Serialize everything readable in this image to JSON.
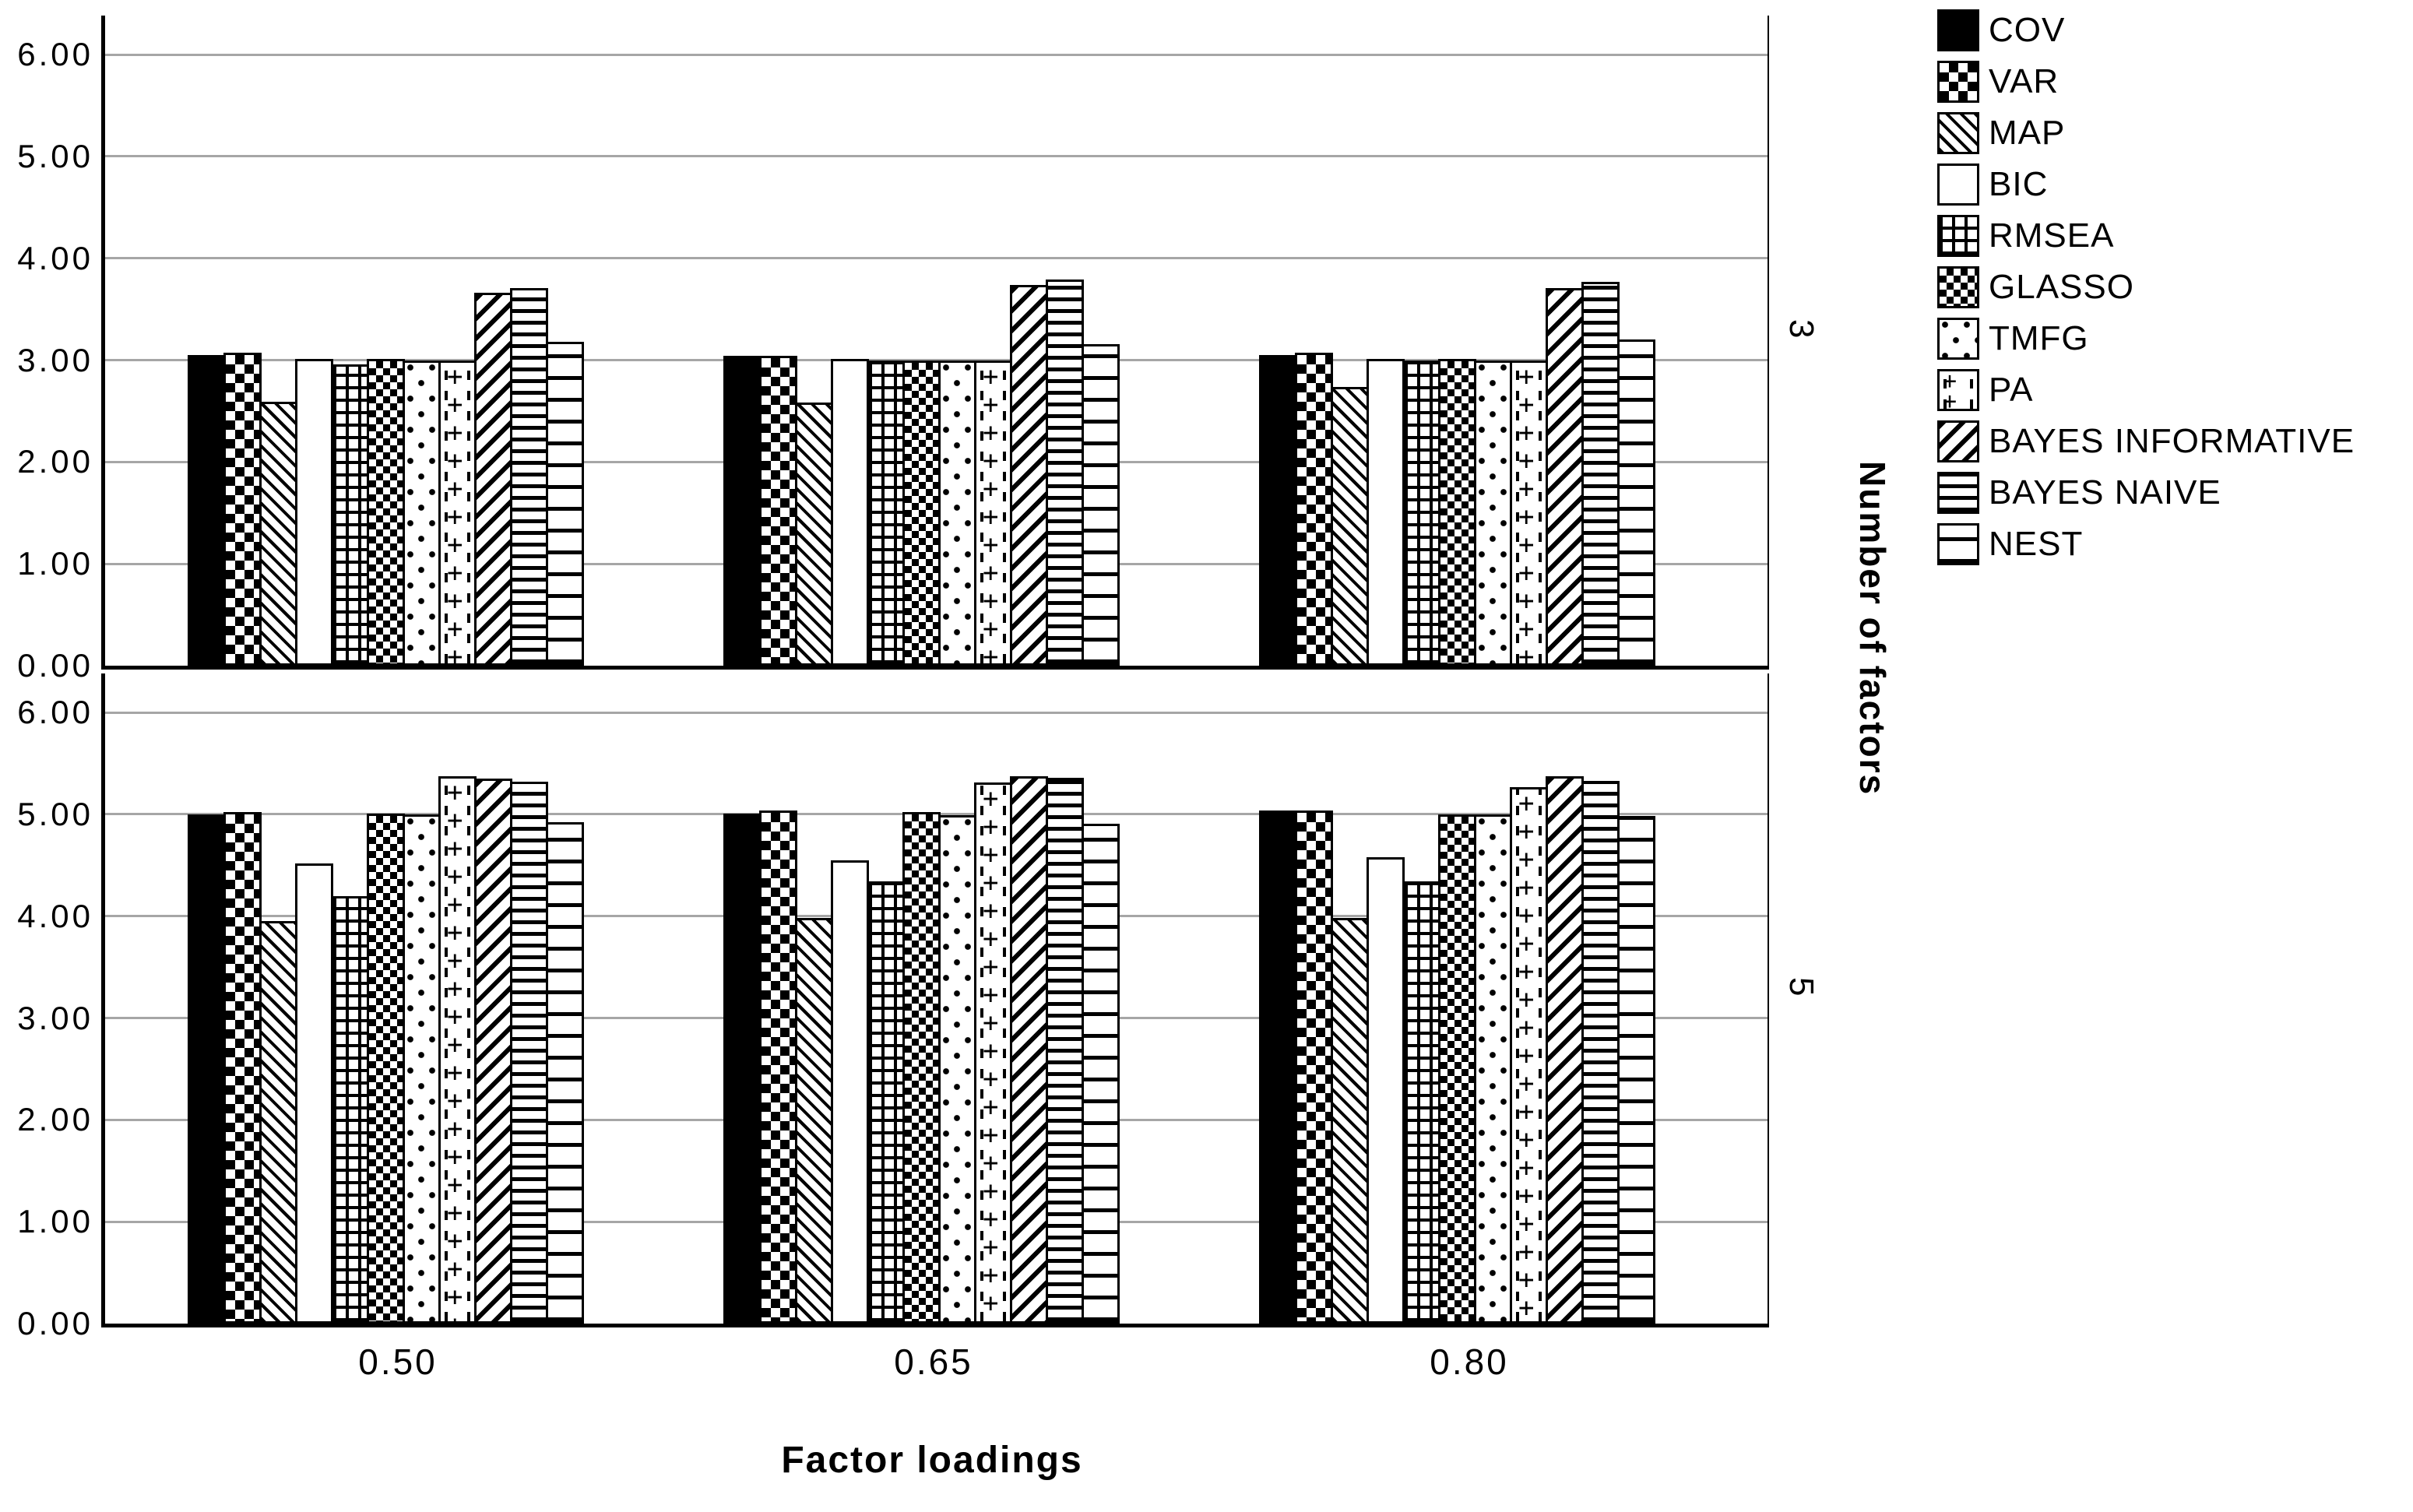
{
  "colors": {
    "foreground": "#000000",
    "background": "#ffffff",
    "gridline": "#a6a6a6"
  },
  "chart_data": {
    "type": "bar",
    "title": "",
    "xlabel": "Factor loadings",
    "panel_axis_label": "Number of factors",
    "categories": [
      "0.50",
      "0.65",
      "0.80"
    ],
    "ylim": [
      0,
      6.4
    ],
    "yticks": [
      "0.00",
      "1.00",
      "2.00",
      "3.00",
      "4.00",
      "5.00",
      "6.00"
    ],
    "grid": true,
    "legend_position": "right-top",
    "series": [
      {
        "name": "COV",
        "pattern": "solid"
      },
      {
        "name": "VAR",
        "pattern": "checker"
      },
      {
        "name": "MAP",
        "pattern": "diag-left"
      },
      {
        "name": "BIC",
        "pattern": "plain"
      },
      {
        "name": "RMSEA",
        "pattern": "grid"
      },
      {
        "name": "GLASSO",
        "pattern": "diamond"
      },
      {
        "name": "TMFG",
        "pattern": "dots"
      },
      {
        "name": "PA",
        "pattern": "plus"
      },
      {
        "name": "BAYES INFORMATIVE",
        "pattern": "diag-right"
      },
      {
        "name": "BAYES NAIVE",
        "pattern": "hlines-dense"
      },
      {
        "name": "NEST",
        "pattern": "hlines-sparse"
      }
    ],
    "panels": [
      {
        "label": "3",
        "groups": [
          [
            3.05,
            3.07,
            2.59,
            3.01,
            2.96,
            3.01,
            3.0,
            3.0,
            3.66,
            3.71,
            3.18
          ],
          [
            3.04,
            3.04,
            2.58,
            3.01,
            3.0,
            3.0,
            3.0,
            3.0,
            3.74,
            3.79,
            3.16
          ],
          [
            3.05,
            3.07,
            2.74,
            3.01,
            3.0,
            3.01,
            3.0,
            3.0,
            3.71,
            3.77,
            3.2
          ]
        ]
      },
      {
        "label": "5",
        "groups": [
          [
            5.0,
            5.02,
            3.95,
            4.52,
            4.2,
            5.01,
            5.0,
            5.37,
            5.35,
            5.32,
            4.92
          ],
          [
            5.01,
            5.04,
            3.98,
            4.55,
            4.34,
            5.02,
            4.99,
            5.31,
            5.37,
            5.36,
            4.91
          ],
          [
            5.04,
            5.04,
            3.98,
            4.58,
            4.34,
            5.0,
            5.0,
            5.27,
            5.37,
            5.33,
            4.98
          ]
        ]
      }
    ]
  }
}
